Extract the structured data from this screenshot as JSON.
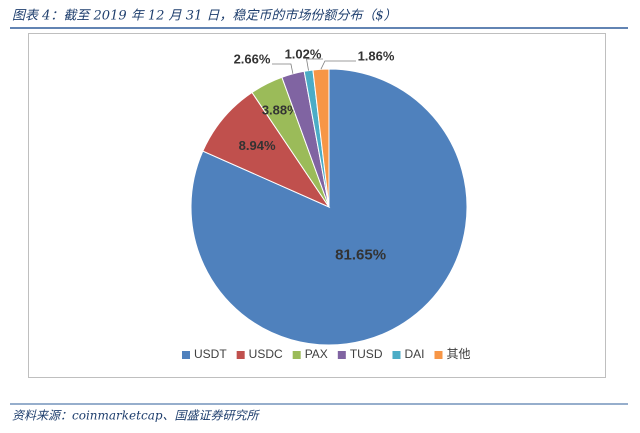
{
  "chart_data": {
    "type": "pie",
    "title": "图表 4：截至 2019 年 12 月 31 日，稳定币的市场份额分布（$）",
    "categories": [
      "USDT",
      "USDC",
      "PAX",
      "TUSD",
      "DAI",
      "其他"
    ],
    "values": [
      81.65,
      8.94,
      3.88,
      2.66,
      1.02,
      1.86
    ],
    "value_labels": [
      "81.65%",
      "8.94%",
      "3.88%",
      "2.66%",
      "1.02%",
      "1.86%"
    ],
    "colors": [
      "#4f81bd",
      "#c0504d",
      "#9bbb59",
      "#8064a2",
      "#4bacc6",
      "#f79646"
    ],
    "legend": "bottom",
    "source": "资料来源：coinmarketcap、国盛证券研究所"
  }
}
